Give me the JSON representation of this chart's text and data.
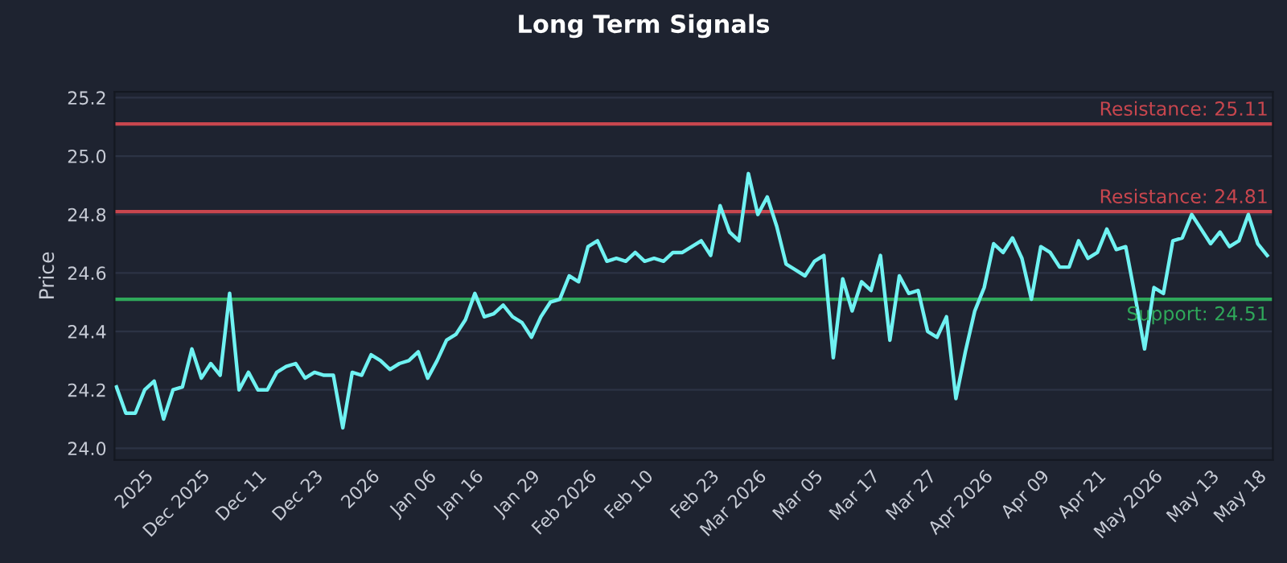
{
  "chart_data": {
    "type": "line",
    "title": "Long Term Signals",
    "ylabel": "Price",
    "categories": [
      null,
      null,
      null,
      "2025",
      null,
      null,
      null,
      null,
      null,
      "Dec 2025",
      null,
      null,
      null,
      null,
      null,
      "Dec 11",
      null,
      null,
      null,
      null,
      null,
      "Dec 23",
      null,
      null,
      null,
      null,
      null,
      "2026",
      null,
      null,
      null,
      null,
      null,
      "Jan 06",
      null,
      null,
      null,
      null,
      "Jan 16",
      null,
      null,
      null,
      null,
      null,
      "Jan 29",
      null,
      null,
      null,
      null,
      null,
      "Feb 2026",
      null,
      null,
      null,
      null,
      null,
      "Feb 10",
      null,
      null,
      null,
      null,
      null,
      null,
      "Feb 23",
      null,
      null,
      null,
      null,
      "Mar 2026",
      null,
      null,
      null,
      null,
      null,
      "Mar 05",
      null,
      null,
      null,
      null,
      null,
      "Mar 17",
      null,
      null,
      null,
      null,
      null,
      "Mar 27",
      null,
      null,
      null,
      null,
      null,
      "Apr 2026",
      null,
      null,
      null,
      null,
      null,
      "Apr 09",
      null,
      null,
      null,
      null,
      null,
      "Apr 21",
      null,
      null,
      null,
      null,
      null,
      "May 2026",
      null,
      null,
      null,
      null,
      null,
      "May 13",
      null,
      null,
      null,
      null,
      "May 18",
      null
    ],
    "series": [
      {
        "color": "#6ff2f2",
        "values": [
          24.21,
          24.12,
          24.12,
          24.2,
          24.23,
          24.1,
          24.2,
          24.21,
          24.34,
          24.24,
          24.29,
          24.25,
          24.53,
          24.2,
          24.26,
          24.2,
          24.2,
          24.26,
          24.28,
          24.29,
          24.24,
          24.26,
          24.25,
          24.25,
          24.07,
          24.26,
          24.25,
          24.32,
          24.3,
          24.27,
          24.29,
          24.3,
          24.33,
          24.24,
          24.3,
          24.37,
          24.39,
          24.44,
          24.53,
          24.45,
          24.46,
          24.49,
          24.45,
          24.43,
          24.38,
          24.45,
          24.5,
          24.51,
          24.59,
          24.57,
          24.69,
          24.71,
          24.64,
          24.65,
          24.64,
          24.67,
          24.64,
          24.65,
          24.64,
          24.67,
          24.67,
          24.69,
          24.71,
          24.66,
          24.83,
          24.74,
          24.71,
          24.94,
          24.8,
          24.86,
          24.76,
          24.63,
          24.61,
          24.59,
          24.64,
          24.66,
          24.31,
          24.58,
          24.47,
          24.57,
          24.54,
          24.66,
          24.37,
          24.59,
          24.53,
          24.54,
          24.4,
          24.38,
          24.45,
          24.17,
          24.33,
          24.47,
          24.55,
          24.7,
          24.67,
          24.72,
          24.65,
          24.51,
          24.69,
          24.67,
          24.62,
          24.62,
          24.71,
          24.65,
          24.67,
          24.75,
          24.68,
          24.69,
          24.52,
          24.34,
          24.55,
          24.53,
          24.71,
          24.72,
          24.8,
          24.75,
          24.7,
          24.74,
          24.69,
          24.71,
          24.8,
          24.7,
          24.66
        ]
      }
    ],
    "ylim": [
      23.96,
      25.22
    ],
    "yticks": [
      {
        "value": 24.0,
        "label": "24.0"
      },
      24.2,
      24.4,
      24.6,
      24.8,
      {
        "value": 25.0,
        "label": "25.0"
      },
      25.2
    ],
    "grid": "y",
    "ref_lines": [
      {
        "axis": "y",
        "value": 25.11,
        "label": "Resistance: 25.11",
        "color": "#c8464e"
      },
      {
        "axis": "y",
        "value": 24.81,
        "label": "Resistance: 24.81",
        "color": "#c8464e"
      },
      {
        "axis": "y",
        "value": 24.51,
        "label": "Support: 24.51",
        "color": "#2fa85a"
      }
    ]
  }
}
